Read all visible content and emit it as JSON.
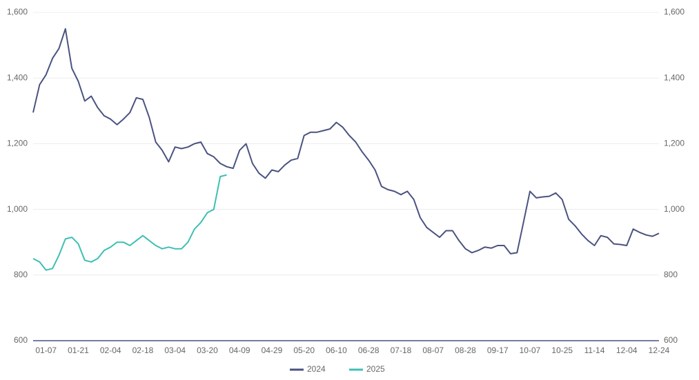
{
  "chart_data": {
    "type": "line",
    "categories": [
      null,
      null,
      "01-07",
      null,
      null,
      null,
      null,
      "01-21",
      null,
      null,
      null,
      null,
      "02-04",
      null,
      null,
      null,
      null,
      "02-18",
      null,
      null,
      null,
      null,
      "03-04",
      null,
      null,
      null,
      null,
      "03-20",
      null,
      null,
      null,
      null,
      "04-09",
      null,
      null,
      null,
      null,
      "04-29",
      null,
      null,
      null,
      null,
      "05-20",
      null,
      null,
      null,
      null,
      "06-10",
      null,
      null,
      null,
      null,
      "06-28",
      null,
      null,
      null,
      null,
      "07-18",
      null,
      null,
      null,
      null,
      "08-07",
      null,
      null,
      null,
      null,
      "08-28",
      null,
      null,
      null,
      null,
      "09-17",
      null,
      null,
      null,
      null,
      "10-07",
      null,
      null,
      null,
      null,
      "10-25",
      null,
      null,
      null,
      null,
      "11-14",
      null,
      null,
      null,
      null,
      "12-04",
      null,
      null,
      null,
      null,
      "12-24"
    ],
    "series": [
      {
        "name": "2024",
        "color": "#4a5280",
        "values": [
          1295,
          1380,
          1410,
          1460,
          1490,
          1550,
          1430,
          1390,
          1330,
          1345,
          1310,
          1285,
          1275,
          1258,
          1275,
          1295,
          1340,
          1335,
          1280,
          1205,
          1180,
          1145,
          1190,
          1185,
          1190,
          1200,
          1205,
          1170,
          1160,
          1140,
          1130,
          1125,
          1180,
          1200,
          1140,
          1110,
          1095,
          1120,
          1115,
          1135,
          1150,
          1155,
          1225,
          1235,
          1235,
          1240,
          1245,
          1265,
          1250,
          1225,
          1205,
          1175,
          1150,
          1120,
          1070,
          1060,
          1055,
          1045,
          1055,
          1030,
          975,
          945,
          930,
          915,
          935,
          935,
          905,
          880,
          868,
          875,
          885,
          882,
          890,
          890,
          865,
          868,
          960,
          1055,
          1035,
          1038,
          1040,
          1050,
          1030,
          970,
          950,
          925,
          905,
          890,
          920,
          915,
          895,
          893,
          890,
          940,
          930,
          922,
          918,
          927
        ]
      },
      {
        "name": "2025",
        "color": "#3dbfb3",
        "values": [
          850,
          840,
          815,
          820,
          860,
          910,
          915,
          895,
          845,
          840,
          850,
          875,
          885,
          900,
          900,
          890,
          905,
          920,
          905,
          890,
          880,
          885,
          880,
          880,
          900,
          940,
          960,
          990,
          1000,
          1100,
          1105,
          null,
          null,
          null,
          null,
          null,
          null,
          null,
          null,
          null,
          null,
          null,
          null,
          null,
          null,
          null,
          null,
          null,
          null,
          null,
          null,
          null,
          null,
          null,
          null,
          null,
          null,
          null,
          null,
          null,
          null,
          null,
          null,
          null,
          null,
          null,
          null,
          null,
          null,
          null,
          null,
          null,
          null,
          null,
          null,
          null,
          null,
          null,
          null,
          null,
          null,
          null,
          null,
          null,
          null,
          null,
          null,
          null,
          null,
          null,
          null,
          null,
          null,
          null,
          null,
          null,
          null,
          null
        ]
      }
    ],
    "ylim": [
      600,
      1600
    ],
    "yticks": [
      {
        "value": 600,
        "label": "600"
      },
      {
        "value": 800,
        "label": "800"
      },
      {
        "value": 1000,
        "label": "1,000"
      },
      {
        "value": 1200,
        "label": "1,200"
      },
      {
        "value": 1400,
        "label": "1,400"
      },
      {
        "value": 1600,
        "label": "1,600"
      }
    ],
    "y2lim": [
      600,
      1600
    ],
    "y2ticks": [
      {
        "value": 600,
        "label": "600"
      },
      {
        "value": 800,
        "label": "800"
      },
      {
        "value": 1000,
        "label": "1,000"
      },
      {
        "value": 1200,
        "label": "1,200"
      },
      {
        "value": 1400,
        "label": "1,400"
      },
      {
        "value": 1600,
        "label": "1,600"
      }
    ],
    "grid": true,
    "legend": "bottom"
  }
}
